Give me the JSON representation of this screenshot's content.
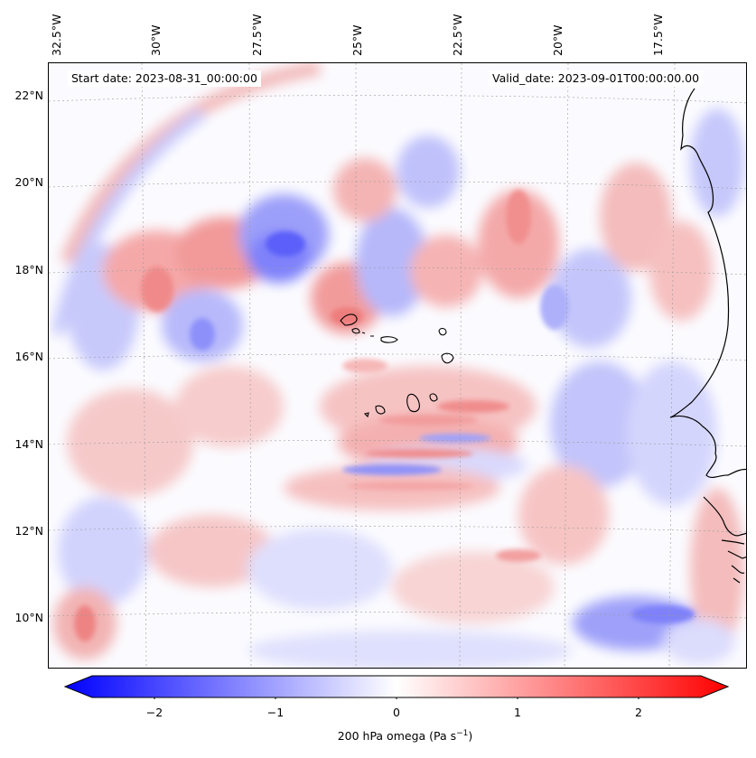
{
  "map": {
    "start_date": "Start date: 2023-08-31_00:00:00",
    "valid_date": "Valid_date: 2023-09-01T00:00:00.00",
    "lon_labels": [
      "32.5°W",
      "30°W",
      "27.5°W",
      "25°W",
      "22.5°W",
      "20°W",
      "17.5°W"
    ],
    "lat_labels": [
      "22°N",
      "20°N",
      "18°N",
      "16°N",
      "14°N",
      "12°N",
      "10°N"
    ],
    "colors": {
      "negative": "#0000ff",
      "zero": "#ffffff",
      "positive": "#ff0000",
      "coastline": "#000000",
      "grid": "#9a9a9a"
    }
  },
  "colorbar": {
    "ticks": [
      "−2",
      "−1",
      "0",
      "1",
      "2"
    ],
    "range": [
      -2.75,
      2.75
    ],
    "label_main": "200 hPa omega (Pa s",
    "label_sup": "−1",
    "label_end": ")"
  }
}
